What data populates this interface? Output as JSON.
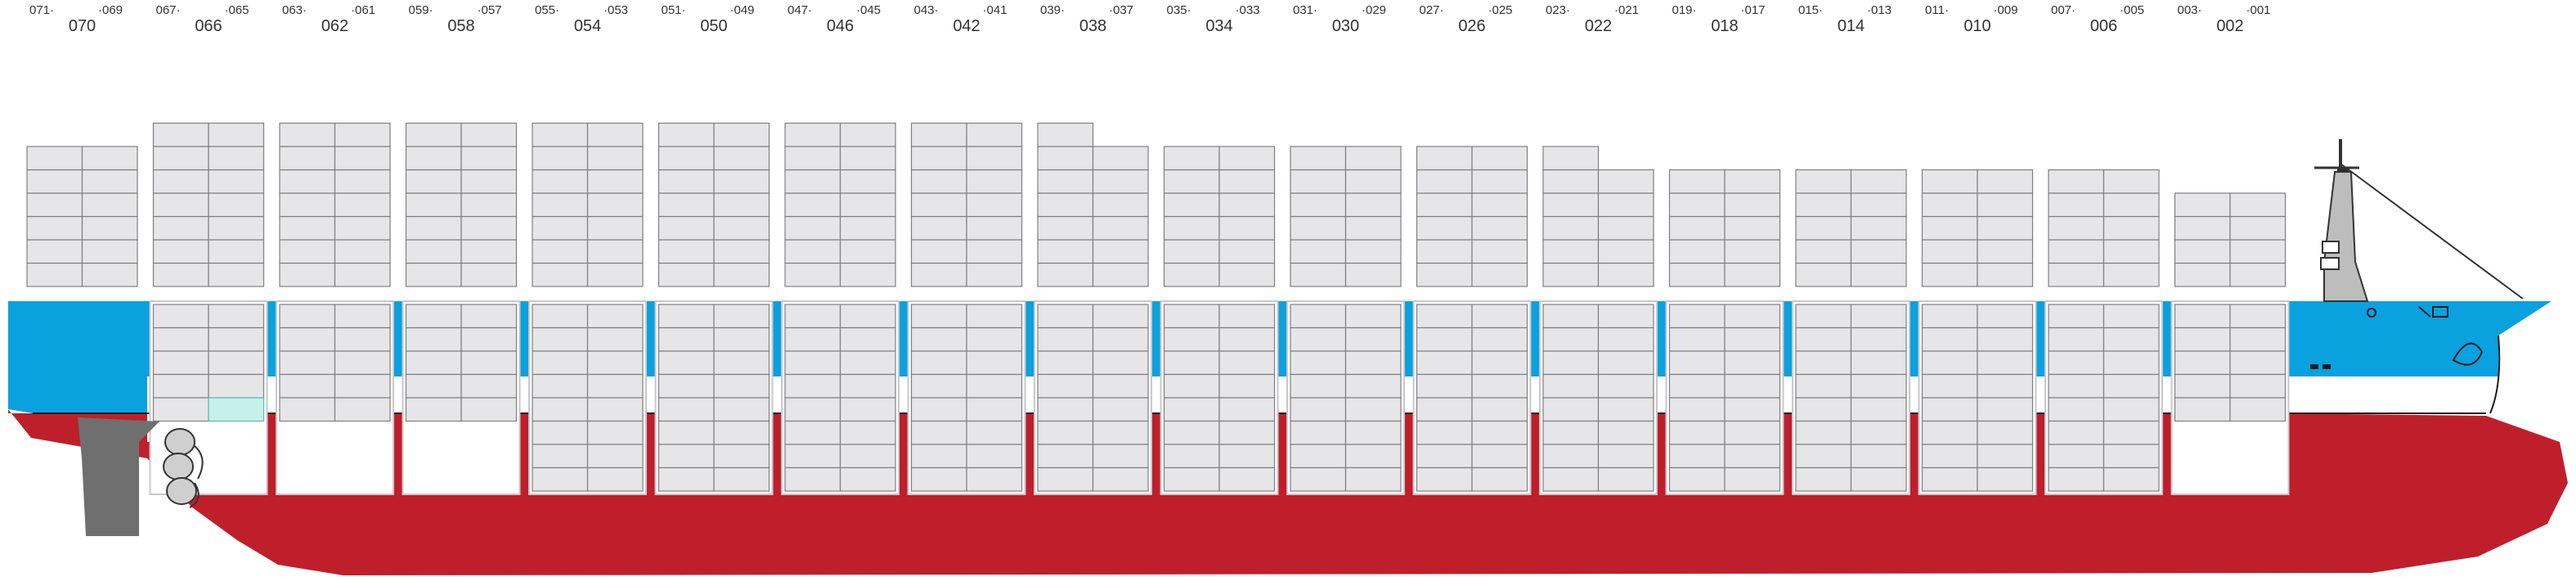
{
  "colors": {
    "hull_red": "#bf1f2a",
    "deck_blue": "#0aa1df",
    "container_grey": "#e6e6e8",
    "container_outline": "#7f7f7f",
    "reefer": "#c6f1ea",
    "propeller": "#cfcfcf",
    "rudder": "#6f6f6f",
    "superstructure": "#bdbdbd"
  },
  "bays": [
    {
      "main": "070",
      "left": "071·",
      "right": "·069"
    },
    {
      "main": "066",
      "left": "067·",
      "right": "·065"
    },
    {
      "main": "062",
      "left": "063·",
      "right": "·061"
    },
    {
      "main": "058",
      "left": "059·",
      "right": "·057"
    },
    {
      "main": "054",
      "left": "055·",
      "right": "·053"
    },
    {
      "main": "050",
      "left": "051·",
      "right": "·049"
    },
    {
      "main": "046",
      "left": "047·",
      "right": "·045"
    },
    {
      "main": "042",
      "left": "043·",
      "right": "·041"
    },
    {
      "main": "038",
      "left": "039·",
      "right": "·037"
    },
    {
      "main": "034",
      "left": "035·",
      "right": "·033"
    },
    {
      "main": "030",
      "left": "031·",
      "right": "·029"
    },
    {
      "main": "026",
      "left": "027·",
      "right": "·025"
    },
    {
      "main": "022",
      "left": "023·",
      "right": "·021"
    },
    {
      "main": "018",
      "left": "019·",
      "right": "·017"
    },
    {
      "main": "014",
      "left": "015·",
      "right": "·013"
    },
    {
      "main": "010",
      "left": "011·",
      "right": "·009"
    },
    {
      "main": "006",
      "left": "007·",
      "right": "·005"
    },
    {
      "main": "002",
      "left": "003·",
      "right": "·001"
    }
  ],
  "stows": {
    "deck_tiers": [
      6,
      7,
      7,
      7,
      7,
      7,
      7,
      7,
      6,
      6,
      6,
      6,
      5,
      5,
      5,
      5,
      5,
      4
    ],
    "deck_extra_left_tier": [
      0,
      0,
      0,
      0,
      0,
      0,
      0,
      0,
      1,
      0,
      0,
      0,
      1,
      0,
      0,
      0,
      0,
      0
    ],
    "hold_tiers": [
      0,
      5,
      5,
      5,
      8,
      8,
      8,
      8,
      8,
      8,
      8,
      8,
      8,
      8,
      8,
      8,
      8,
      5
    ],
    "hold_reefer_slots": [
      {
        "bay": "066",
        "tier": 5,
        "side": "right"
      }
    ]
  },
  "icons": {
    "propeller": "propeller-icon",
    "rudder": "rudder-icon",
    "bridge": "bridge-icon",
    "mast": "mast-icon",
    "bow_logo": "bow-logo-icon"
  }
}
